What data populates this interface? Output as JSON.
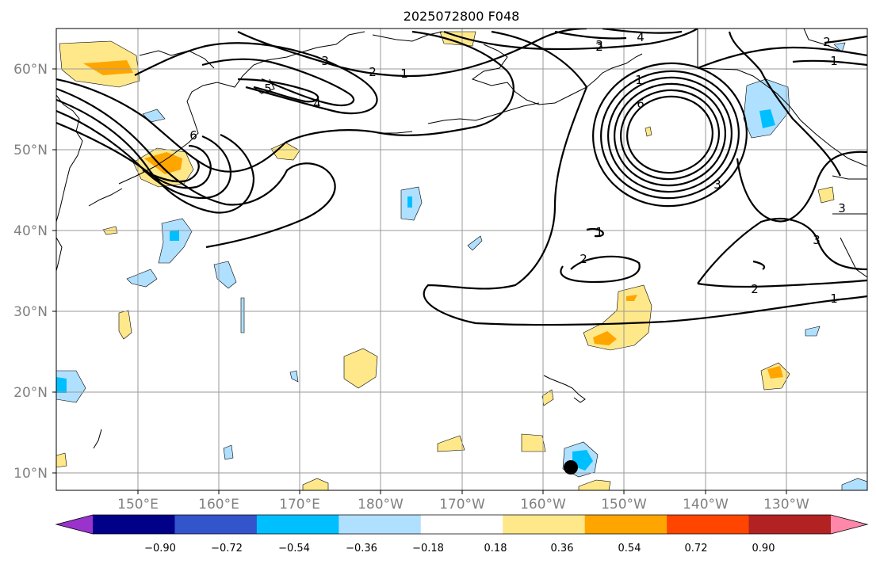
{
  "title": "2025072800 F048",
  "lat_labels": [
    "60°N",
    "50°N",
    "40°N",
    "30°N",
    "20°N",
    "10°N"
  ],
  "lon_labels": [
    "150°E",
    "160°E",
    "170°E",
    "180°W",
    "170°W",
    "160°W",
    "150°W",
    "140°W",
    "130°W"
  ],
  "colorbar": {
    "ticks": [
      "−0.90",
      "−0.72",
      "−0.54",
      "−0.36",
      "−0.18",
      "0.18",
      "0.36",
      "0.54",
      "0.72",
      "0.90"
    ],
    "colors": [
      "#9933cc",
      "#000088",
      "#3355cc",
      "#00bfff",
      "#b0e0ff",
      "#ffffff",
      "#ffe88a",
      "#ffa500",
      "#ff4500",
      "#b22222",
      "#ff88aa"
    ]
  },
  "contour_labels": [
    "1",
    "2",
    "3",
    "4",
    "5",
    "6",
    "1",
    "2",
    "3",
    "4",
    "6",
    "1",
    "2",
    "3",
    "2",
    "1",
    "3",
    "3",
    "2",
    "2",
    "1"
  ],
  "colors": {
    "pos_light": "#ffe88a",
    "pos_mid": "#ffa500",
    "neg_light": "#b0e0ff",
    "neg_mid": "#00bfff",
    "marker": "#000000"
  }
}
